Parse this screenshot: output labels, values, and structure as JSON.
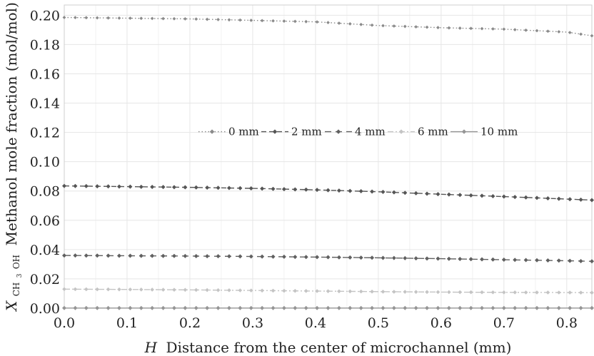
{
  "chart_data": {
    "type": "line",
    "xlabel_var": "H",
    "xlabel": "Distance from the center of microchannel (mm)",
    "ylabel_var": "X",
    "ylabel_sub": "CH",
    "ylabel_sub_digit": "3",
    "ylabel_sub_end": "OH",
    "ylabel": "Methanol mole fraction (mol/mol)",
    "xlim": [
      0,
      0.84
    ],
    "ylim": [
      0,
      0.207
    ],
    "xticks": [
      0,
      0.1,
      0.2,
      0.3,
      0.4,
      0.5,
      0.6,
      0.7,
      0.8
    ],
    "xtick_labels": [
      "0.0",
      "0.1",
      "0.2",
      "0.3",
      "0.4",
      "0.5",
      "0.6",
      "0.7",
      "0.8"
    ],
    "yticks": [
      0,
      0.02,
      0.04,
      0.06,
      0.08,
      0.1,
      0.12,
      0.14,
      0.16,
      0.18,
      0.2
    ],
    "ytick_labels": [
      "0.00",
      "0.02",
      "0.04",
      "0.06",
      "0.08",
      "0.10",
      "0.12",
      "0.14",
      "0.16",
      "0.18",
      "0.20"
    ],
    "grid": true,
    "legend_position": "center",
    "series": [
      {
        "name": "0 mm",
        "color": "#8a8a8a",
        "dash": "1.5,3",
        "marker_size": 2.4,
        "x": [
          0,
          0.1,
          0.2,
          0.3,
          0.4,
          0.5,
          0.6,
          0.7,
          0.8,
          0.84
        ],
        "y": [
          0.1985,
          0.198,
          0.1975,
          0.1965,
          0.1955,
          0.193,
          0.1915,
          0.1905,
          0.1885,
          0.186
        ]
      },
      {
        "name": "2 mm",
        "color": "#555555",
        "dash": "7,4",
        "marker_size": 3.0,
        "x": [
          0,
          0.1,
          0.2,
          0.3,
          0.4,
          0.5,
          0.6,
          0.7,
          0.8,
          0.84
        ],
        "y": [
          0.0835,
          0.083,
          0.0825,
          0.0818,
          0.0808,
          0.0795,
          0.0778,
          0.0762,
          0.0745,
          0.0738
        ]
      },
      {
        "name": "4 mm",
        "color": "#606060",
        "dash": "9,6",
        "marker_size": 3.0,
        "x": [
          0,
          0.1,
          0.2,
          0.3,
          0.4,
          0.5,
          0.6,
          0.7,
          0.8,
          0.84
        ],
        "y": [
          0.036,
          0.0358,
          0.0356,
          0.0353,
          0.0349,
          0.0344,
          0.0338,
          0.0331,
          0.0324,
          0.032
        ]
      },
      {
        "name": "6 mm",
        "color": "#c4c4c4",
        "dash": "8,3,2,3",
        "marker_size": 2.8,
        "x": [
          0,
          0.1,
          0.2,
          0.3,
          0.4,
          0.5,
          0.6,
          0.7,
          0.8,
          0.84
        ],
        "y": [
          0.013,
          0.0128,
          0.0125,
          0.0121,
          0.0117,
          0.0113,
          0.011,
          0.0108,
          0.0107,
          0.0106
        ]
      },
      {
        "name": "10 mm",
        "color": "#959595",
        "dash": "",
        "marker_size": 3.0,
        "x": [
          0,
          0.1,
          0.2,
          0.3,
          0.4,
          0.5,
          0.6,
          0.7,
          0.8,
          0.84
        ],
        "y": [
          0.0001,
          0.0001,
          0.0001,
          0.0001,
          0.0001,
          0.0001,
          0.0001,
          0.0001,
          0.0001,
          0.0001
        ]
      }
    ]
  }
}
